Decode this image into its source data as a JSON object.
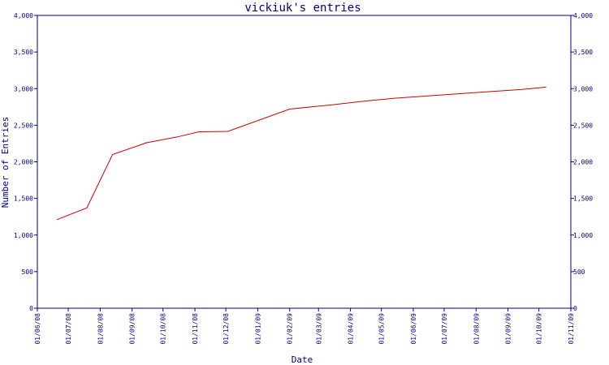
{
  "chart_data": {
    "type": "line",
    "title": "vickiuk's entries",
    "xlabel": "Date",
    "ylabel": "Number of Entries",
    "ylim": [
      0,
      4000
    ],
    "y_ticks": [
      0,
      500,
      1000,
      1500,
      2000,
      2500,
      3000,
      3500,
      4000
    ],
    "y_tick_labels": [
      "0",
      "500",
      "1,000",
      "1,500",
      "2,000",
      "2,500",
      "3,000",
      "3,500",
      "4,000"
    ],
    "x_ticks": [
      "2008-06-01",
      "2008-07-01",
      "2008-08-01",
      "2008-09-01",
      "2008-10-01",
      "2008-11-01",
      "2008-12-01",
      "2009-01-01",
      "2009-02-01",
      "2009-03-01",
      "2009-04-01",
      "2009-05-01",
      "2009-06-01",
      "2009-07-01",
      "2009-08-01",
      "2009-09-01",
      "2009-10-01",
      "2009-11-01"
    ],
    "x_tick_labels": [
      "01/06/08",
      "01/07/08",
      "01/08/08",
      "01/09/08",
      "01/10/08",
      "01/11/08",
      "01/12/08",
      "01/01/09",
      "01/02/09",
      "01/03/09",
      "01/04/09",
      "01/05/09",
      "01/06/09",
      "01/07/09",
      "01/08/09",
      "01/09/09",
      "01/10/09",
      "01/11/09"
    ],
    "xlim": [
      "2008-06-01",
      "2009-11-01"
    ],
    "grid": false,
    "series": [
      {
        "color": "#cc0000",
        "points": [
          {
            "x": "2008-06-20",
            "y": 1210
          },
          {
            "x": "2008-07-19",
            "y": 1370
          },
          {
            "x": "2008-08-13",
            "y": 2100
          },
          {
            "x": "2008-09-15",
            "y": 2260
          },
          {
            "x": "2008-10-15",
            "y": 2340
          },
          {
            "x": "2008-11-05",
            "y": 2410
          },
          {
            "x": "2008-12-03",
            "y": 2415
          },
          {
            "x": "2009-02-01",
            "y": 2720
          },
          {
            "x": "2009-03-15",
            "y": 2780
          },
          {
            "x": "2009-04-15",
            "y": 2830
          },
          {
            "x": "2009-05-15",
            "y": 2870
          },
          {
            "x": "2009-06-15",
            "y": 2900
          },
          {
            "x": "2009-07-15",
            "y": 2930
          },
          {
            "x": "2009-08-15",
            "y": 2960
          },
          {
            "x": "2009-09-15",
            "y": 2990
          },
          {
            "x": "2009-10-08",
            "y": 3020
          }
        ]
      }
    ],
    "axis_color": "#000080"
  }
}
